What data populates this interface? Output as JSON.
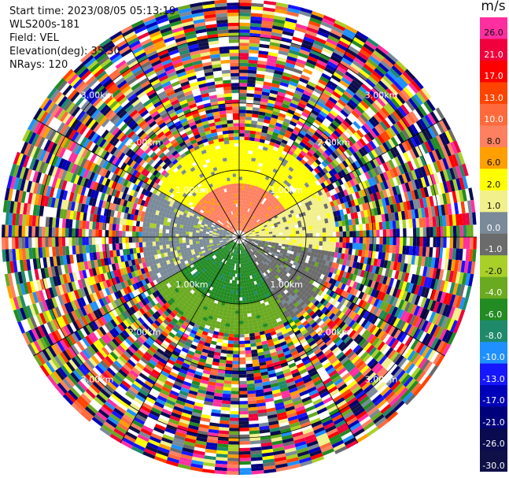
{
  "header": {
    "start_time": "Start time: 2023/08/05 05:13:19",
    "instrument": "WLS200s-181",
    "field": "Field: VEL",
    "elevation": "Elevation(deg): 35.30",
    "nrays": "NRays: 120"
  },
  "colorbar": {
    "unit": "m/s",
    "bins": [
      {
        "label": "26.0",
        "color": "#ff2fa0"
      },
      {
        "label": "21.0",
        "color": "#f0003c"
      },
      {
        "label": "17.0",
        "color": "#ff0000"
      },
      {
        "label": "13.0",
        "color": "#ff4400"
      },
      {
        "label": "10.0",
        "color": "#ff6a3c"
      },
      {
        "label": "8.0",
        "color": "#ff8060"
      },
      {
        "label": "6.0",
        "color": "#ffa000"
      },
      {
        "label": "2.0",
        "color": "#ffff00"
      },
      {
        "label": "1.0",
        "color": "#f2f08a"
      },
      {
        "label": "0.0",
        "color": "#7a8a98"
      },
      {
        "label": "-1.0",
        "color": "#6b6b6b"
      },
      {
        "label": "-2.0",
        "color": "#a8d028"
      },
      {
        "label": "-4.0",
        "color": "#6aaa20"
      },
      {
        "label": "-6.0",
        "color": "#228b22"
      },
      {
        "label": "-8.0",
        "color": "#1f8a6a"
      },
      {
        "label": "-10.0",
        "color": "#1e90ff"
      },
      {
        "label": "-13.0",
        "color": "#1616ff"
      },
      {
        "label": "-17.0",
        "color": "#0000b8"
      },
      {
        "label": "-21.0",
        "color": "#00007a"
      },
      {
        "label": "-26.0",
        "color": "#0a0a50"
      },
      {
        "label": "-30.0",
        "color": "#101048"
      }
    ]
  },
  "chart_data": {
    "type": "ppi",
    "field": "VEL",
    "units": "m/s",
    "nrays": 120,
    "elevation_deg": 35.3,
    "range_rings_km": [
      1.0,
      2.0,
      3.0
    ],
    "ring_labels": [
      "1.00km",
      "2.00km",
      "3.00km"
    ],
    "max_range_km": 3.55,
    "spokes_every_deg": 30,
    "valid_data_range_km": 1.45,
    "regions": [
      {
        "azimuth_deg": [
          300,
          60
        ],
        "range_km": [
          0.1,
          0.8
        ],
        "velocity_ms": 8.0
      },
      {
        "azimuth_deg": [
          300,
          60
        ],
        "range_km": [
          0.8,
          1.45
        ],
        "velocity_ms": 2.0
      },
      {
        "azimuth_deg": [
          60,
          100
        ],
        "range_km": [
          0.1,
          1.45
        ],
        "velocity_ms": 1.0
      },
      {
        "azimuth_deg": [
          100,
          150
        ],
        "range_km": [
          0.1,
          1.45
        ],
        "velocity_ms": -1.0
      },
      {
        "azimuth_deg": [
          150,
          240
        ],
        "range_km": [
          0.1,
          1.0
        ],
        "velocity_ms": -6.0
      },
      {
        "azimuth_deg": [
          150,
          240
        ],
        "range_km": [
          1.0,
          1.45
        ],
        "velocity_ms": -4.0
      },
      {
        "azimuth_deg": [
          240,
          300
        ],
        "range_km": [
          0.1,
          1.45
        ],
        "velocity_ms": 0.0
      },
      {
        "azimuth_deg": [
          0,
          360
        ],
        "range_km": [
          1.45,
          3.55
        ],
        "velocity_ms": "noise"
      }
    ]
  }
}
